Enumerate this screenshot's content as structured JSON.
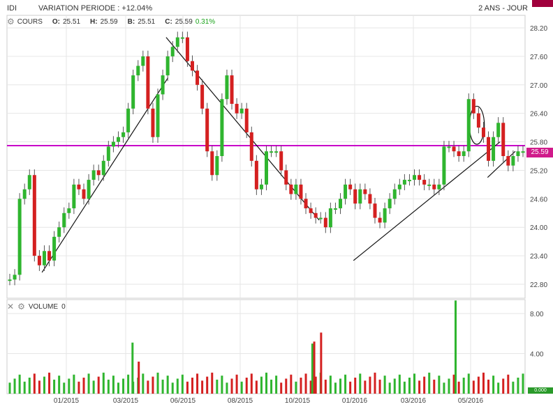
{
  "header": {
    "symbol": "IDI",
    "variation": "VARIATION PERIODE : +12.04%",
    "period": "2 ANS - JOUR"
  },
  "price_legend": {
    "name": "COURS",
    "o_label": "O:",
    "o": "25.51",
    "h_label": "H:",
    "h": "25.59",
    "b_label": "B:",
    "b": "25.51",
    "c_label": "C:",
    "c": "25.59",
    "chg": "0.31%"
  },
  "volume_legend": {
    "name": "VOLUME",
    "value": "0"
  },
  "last_price_tag": "25.59",
  "last_volume_tag": "0.000",
  "colors": {
    "up": "#2fb52f",
    "down": "#d42020",
    "level_line": "#c800c8",
    "wick": "#555555"
  },
  "icons": {
    "settings": "gear-icon",
    "close": "close-icon"
  },
  "chart_data": [
    {
      "type": "candlestick",
      "y_ticks": [
        "28.20",
        "27.60",
        "27.00",
        "26.40",
        "25.80",
        "25.20",
        "24.60",
        "24.00",
        "23.40",
        "22.80"
      ],
      "x_ticks": [
        "01/2015",
        "03/2015",
        "06/2015",
        "08/2015",
        "10/2015",
        "01/2016",
        "03/2016",
        "05/2016"
      ],
      "ylim": [
        22.6,
        28.4
      ],
      "horizontal_line": 25.72,
      "close_series": [
        22.9,
        23.0,
        24.6,
        24.8,
        25.1,
        23.4,
        23.2,
        23.5,
        23.3,
        23.8,
        24.0,
        24.3,
        24.4,
        24.9,
        24.8,
        24.6,
        25.0,
        25.2,
        25.1,
        25.4,
        25.7,
        25.8,
        25.9,
        26.0,
        26.5,
        27.2,
        27.4,
        27.6,
        26.5,
        25.9,
        26.8,
        27.2,
        27.6,
        27.8,
        28.0,
        28.0,
        27.5,
        27.3,
        27.0,
        26.5,
        25.6,
        25.1,
        25.5,
        26.7,
        27.2,
        26.6,
        26.4,
        26.5,
        26.0,
        25.4,
        24.8,
        24.9,
        25.6,
        25.6,
        25.6,
        25.2,
        24.9,
        24.7,
        24.9,
        24.6,
        24.4,
        24.3,
        24.2,
        24.2,
        24.0,
        24.4,
        24.4,
        24.6,
        24.9,
        24.8,
        24.5,
        24.8,
        24.7,
        24.5,
        24.2,
        24.1,
        24.4,
        24.6,
        24.8,
        24.9,
        25.0,
        25.0,
        25.1,
        25.0,
        24.9,
        24.9,
        24.8,
        24.9,
        25.7,
        25.7,
        25.6,
        25.5,
        25.6,
        26.7,
        26.4,
        26.1,
        25.9,
        25.4,
        25.9,
        26.2,
        25.5,
        25.3,
        25.5,
        25.6,
        25.6
      ],
      "segments": [
        {
          "from": [
            "07/12/2014",
            23.05
          ],
          "to": [
            "08/05/2015",
            27.15
          ]
        },
        {
          "from": [
            "05/05/2015",
            28.0
          ],
          "to": [
            "05/11/2015",
            24.15
          ]
        },
        {
          "from": [
            "30/12/2015",
            23.3
          ],
          "to": [
            "03/06/2016",
            25.8
          ]
        },
        {
          "from": [
            "20/05/2016",
            25.05
          ],
          "to": [
            "20/06/2016",
            25.6
          ]
        }
      ],
      "ellipse": {
        "center": [
          "08/05/2016",
          26.15
        ],
        "width_days": 8,
        "height": 0.8
      }
    },
    {
      "type": "bar",
      "title": "VOLUME",
      "y_ticks": [
        "8.00",
        "4.00"
      ],
      "ylim": [
        0,
        9.5
      ],
      "spikes": [
        {
          "x": "12/03/2015",
          "value": 5.1,
          "color": "#2fb52f"
        },
        {
          "x": "22/03/2015",
          "value": 3.2,
          "color": "#d42020"
        },
        {
          "x": "25/10/2015",
          "value": 5.0,
          "color": "#2fb52f"
        },
        {
          "x": "28/10/2015",
          "value": 5.2,
          "color": "#d42020"
        },
        {
          "x": "08/11/2015",
          "value": 6.1,
          "color": "#d42020"
        },
        {
          "x": "15/04/2016",
          "value": 9.3,
          "color": "#2fb52f"
        }
      ]
    }
  ]
}
